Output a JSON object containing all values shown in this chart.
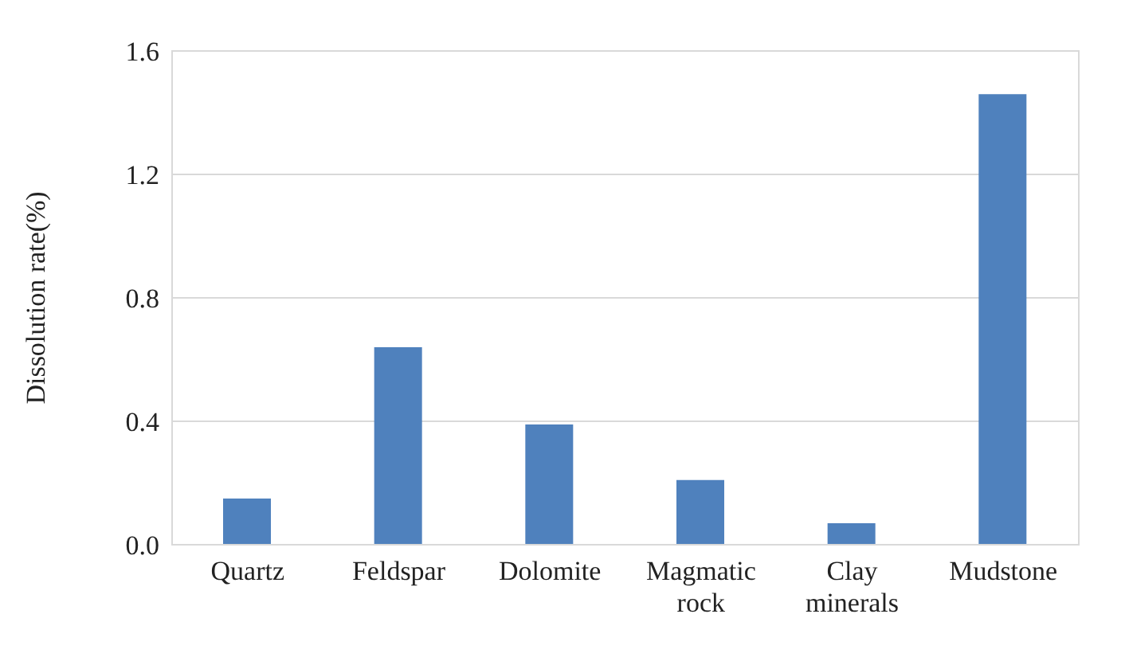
{
  "chart_data": {
    "type": "bar",
    "ylabel": "Dissolution rate(%)",
    "categories": [
      "Quartz",
      "Feldspar",
      "Dolomite",
      "Magmatic rock",
      "Clay minerals",
      "Mudstone"
    ],
    "values": [
      0.15,
      0.64,
      0.39,
      0.21,
      0.07,
      1.46
    ],
    "color": "#4f81bd",
    "ylim": [
      0,
      1.6
    ],
    "yticks": [
      {
        "value": 0,
        "label": "0.0"
      },
      {
        "value": 0.4,
        "label": "0.4"
      },
      {
        "value": 0.8,
        "label": "0.8"
      },
      {
        "value": 1.2,
        "label": "1.2"
      },
      {
        "value": 1.6,
        "label": "1.6"
      }
    ],
    "grid": "y"
  }
}
